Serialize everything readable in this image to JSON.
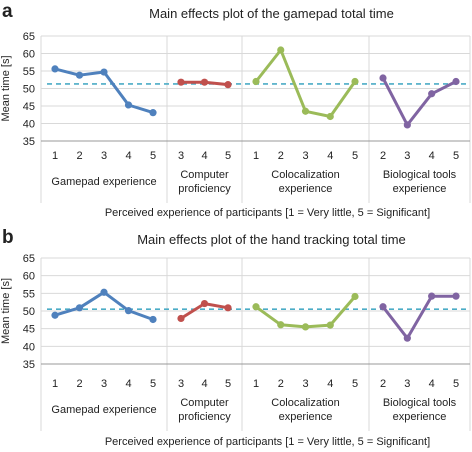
{
  "chart_data": [
    {
      "panel_label": "a",
      "type": "line",
      "title": "Main effects plot of the gamepad total time",
      "ylabel": "Mean time [s]",
      "xlabel": "Perceived experience of participants [1 = Very little, 5 = Significant]",
      "ylim": [
        35,
        65
      ],
      "yticks": [
        35,
        40,
        45,
        50,
        55,
        60,
        65
      ],
      "grid": true,
      "reference_line": 51.3,
      "groups": [
        {
          "label": [
            "Gamepad experience"
          ],
          "x": [
            "1",
            "2",
            "3",
            "4",
            "5"
          ],
          "values": [
            55.6,
            53.8,
            54.7,
            45.3,
            43.1
          ],
          "color": "#4f81bd"
        },
        {
          "label": [
            "Computer",
            "proficiency"
          ],
          "x": [
            "3",
            "4",
            "5"
          ],
          "values": [
            51.8,
            51.8,
            51.1
          ],
          "color": "#c0504d"
        },
        {
          "label": [
            "Colocalization",
            "experience"
          ],
          "x": [
            "1",
            "2",
            "3",
            "4",
            "5"
          ],
          "values": [
            52.0,
            61.0,
            43.5,
            42.0,
            52.0
          ],
          "color": "#9bbb59"
        },
        {
          "label": [
            "Biological tools",
            "experience"
          ],
          "x": [
            "2",
            "3",
            "4",
            "5"
          ],
          "values": [
            53.0,
            39.6,
            48.5,
            52.0
          ],
          "color": "#8064a2"
        }
      ]
    },
    {
      "panel_label": "b",
      "type": "line",
      "title": "Main effects plot of the hand tracking total time",
      "ylabel": "Mean time [s]",
      "xlabel": "Perceived experience of participants [1 = Very little, 5 = Significant]",
      "ylim": [
        35,
        65
      ],
      "yticks": [
        35,
        40,
        45,
        50,
        55,
        60,
        65
      ],
      "grid": true,
      "reference_line": 50.5,
      "groups": [
        {
          "label": [
            "Gamepad experience"
          ],
          "x": [
            "1",
            "2",
            "3",
            "4",
            "5"
          ],
          "values": [
            48.8,
            50.9,
            55.3,
            50.1,
            47.6
          ],
          "color": "#4f81bd"
        },
        {
          "label": [
            "Computer",
            "proficiency"
          ],
          "x": [
            "3",
            "4",
            "5"
          ],
          "values": [
            47.9,
            52.1,
            50.9
          ],
          "color": "#c0504d"
        },
        {
          "label": [
            "Colocalization",
            "experience"
          ],
          "x": [
            "1",
            "2",
            "3",
            "4",
            "5"
          ],
          "values": [
            51.2,
            46.1,
            45.5,
            46.0,
            54.1
          ],
          "color": "#9bbb59"
        },
        {
          "label": [
            "Biological tools",
            "experience"
          ],
          "x": [
            "2",
            "3",
            "4",
            "5"
          ],
          "values": [
            51.2,
            42.3,
            54.2,
            54.2
          ],
          "color": "#8064a2"
        }
      ]
    }
  ],
  "colors": {
    "grid": "#d9d9d9",
    "reference_line": "#4bacc6",
    "axis": "#999999"
  }
}
